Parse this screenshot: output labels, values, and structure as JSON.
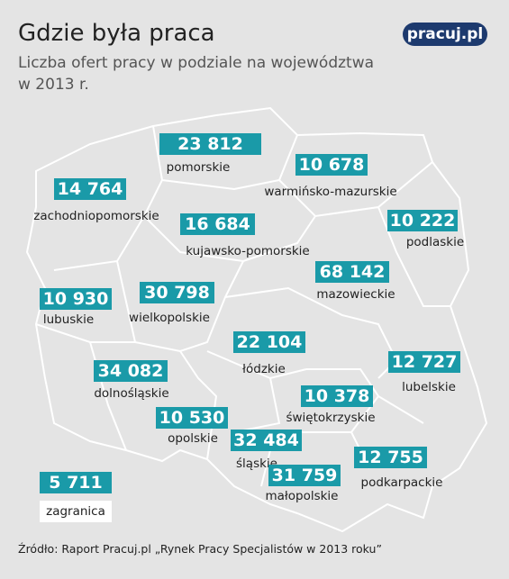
{
  "header": {
    "title": "Gdzie była praca",
    "subtitle": [
      "Liczba ofert pracy w podziale na województwa",
      "w 2013 r."
    ],
    "logo": "pracuj.pl"
  },
  "regions": [
    {
      "name": "pomorskie",
      "value": "23 812"
    },
    {
      "name": "warmińsko-mazurskie",
      "value": "10 678"
    },
    {
      "name": "zachodniopomorskie",
      "value": "14 764"
    },
    {
      "name": "kujawsko-pomorskie",
      "value": "16 684"
    },
    {
      "name": "podlaskie",
      "value": "10 222"
    },
    {
      "name": "mazowieckie",
      "value": "68 142"
    },
    {
      "name": "lubuskie",
      "value": "10 930"
    },
    {
      "name": "wielkopolskie",
      "value": "30 798"
    },
    {
      "name": "łódzkie",
      "value": "22 104"
    },
    {
      "name": "lubelskie",
      "value": "12 727"
    },
    {
      "name": "dolnośląskie",
      "value": "34 082"
    },
    {
      "name": "świętokrzyskie",
      "value": "10 378"
    },
    {
      "name": "opolskie",
      "value": "10 530"
    },
    {
      "name": "śląskie",
      "value": "32 484"
    },
    {
      "name": "małopolskie",
      "value": "31 759"
    },
    {
      "name": "podkarpackie",
      "value": "12 755"
    },
    {
      "name": "zagranica",
      "value": "5 711"
    }
  ],
  "footer": {
    "source": "Źródło: Raport Pracuj.pl „Rynek Pracy Specjalistów w 2013 roku”"
  }
}
